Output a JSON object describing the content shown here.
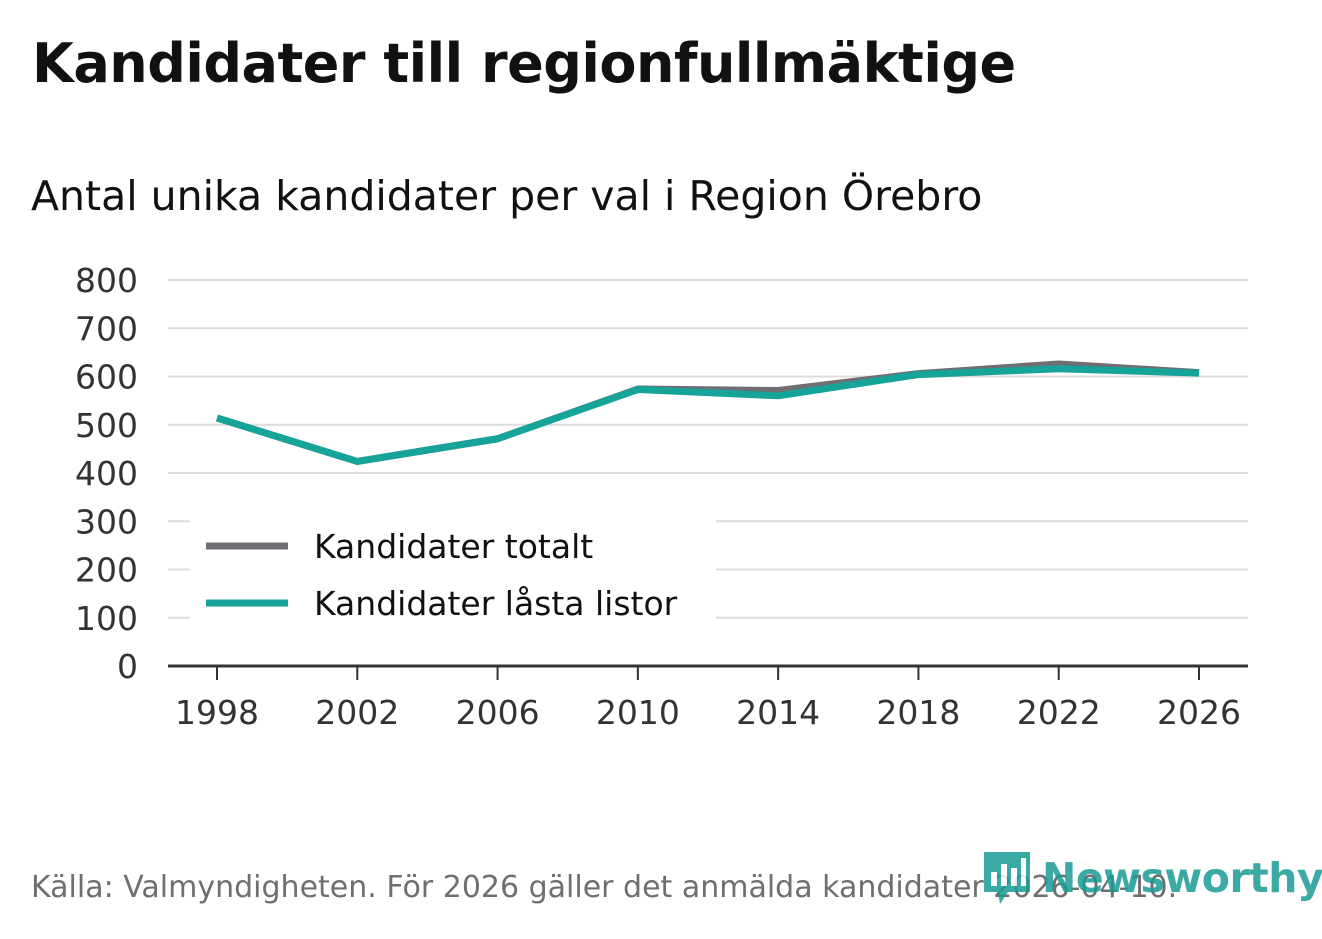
{
  "header": {
    "title": "Kandidater till regionfullmäktige",
    "subtitle": "Antal unika kandidater per val i Region Örebro"
  },
  "footer": {
    "source": "Källa: Valmyndigheten. För 2026 gäller det anmälda kandidater 2026-04-10.",
    "brand": "Newsworthy",
    "brand_icon": "bar-chart-speech-bubble-icon"
  },
  "colors": {
    "series_total": "#6e6e73",
    "series_locked": "#16a39a",
    "grid": "#dcdcdc",
    "axis": "#333333",
    "brand": "#1a9b95"
  },
  "chart_data": {
    "type": "line",
    "title": "Kandidater till regionfullmäktige",
    "subtitle": "Antal unika kandidater per val i Region Örebro",
    "xlabel": "",
    "ylabel": "",
    "x": [
      1998,
      2002,
      2006,
      2010,
      2014,
      2018,
      2022,
      2026
    ],
    "x_ticks": [
      "1998",
      "2002",
      "2006",
      "2010",
      "2014",
      "2018",
      "2022",
      "2026"
    ],
    "ylim": [
      0,
      800
    ],
    "y_ticks": [
      0,
      100,
      200,
      300,
      400,
      500,
      600,
      700,
      800
    ],
    "grid": true,
    "legend": "bottom-left",
    "series": [
      {
        "name": "Kandidater totalt",
        "values": [
          514,
          424,
          471,
          574,
          571,
          606,
          626,
          608
        ]
      },
      {
        "name": "Kandidater låsta listor",
        "values": [
          514,
          424,
          471,
          573,
          560,
          604,
          616,
          607
        ]
      }
    ]
  }
}
